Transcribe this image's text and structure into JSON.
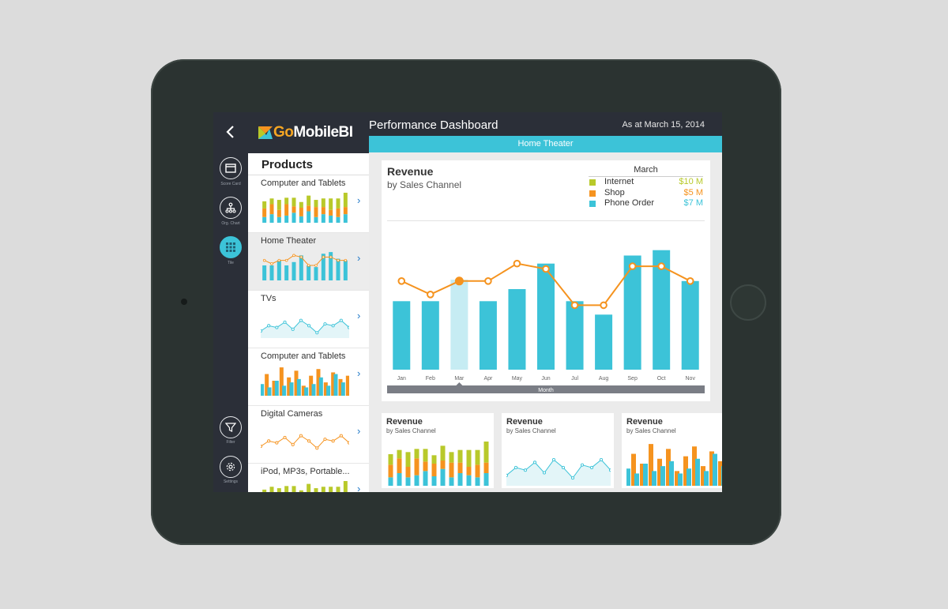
{
  "colors": {
    "teal": "#3cc3d8",
    "orange": "#f5931f",
    "green": "#b8c92a",
    "dark": "#2b2f38",
    "light_teal": "#c6ecf3"
  },
  "rail": {
    "back_icon": "chevron-left-icon",
    "items": [
      {
        "label": "Score Card",
        "icon": "scorecard-icon"
      },
      {
        "label": "Org. Chart",
        "icon": "org-chart-icon"
      },
      {
        "label": "Tile",
        "icon": "tile-icon"
      }
    ],
    "bottom": [
      {
        "label": "Filter",
        "icon": "filter-icon"
      },
      {
        "label": "Settings",
        "icon": "gear-icon"
      }
    ]
  },
  "logo": {
    "go": "Go",
    "rest": "MobileBI"
  },
  "products": {
    "title": "Products",
    "items": [
      {
        "label": "Computer and Tablets",
        "kind": "stacked"
      },
      {
        "label": "Home Theater",
        "kind": "bar-line"
      },
      {
        "label": "TVs",
        "kind": "area"
      },
      {
        "label": "Computer and Tablets",
        "kind": "grouped"
      },
      {
        "label": "Digital Cameras",
        "kind": "line"
      },
      {
        "label": "iPod, MP3s, Portable...",
        "kind": "stacked"
      }
    ]
  },
  "header": {
    "title": "Performance Dashboard",
    "date": "As at March 15, 2014",
    "category": "Home Theater"
  },
  "main_card": {
    "title": "Revenue",
    "subtitle": "by Sales Channel",
    "legend": {
      "month": "March",
      "rows": [
        {
          "name": "Internet",
          "value": "$10 M",
          "color": "#b8c92a"
        },
        {
          "name": "Shop",
          "value": "$5 M",
          "color": "#f5931f"
        },
        {
          "name": "Phone Order",
          "value": "$7 M",
          "color": "#3cc3d8"
        }
      ]
    }
  },
  "chart_data": {
    "type": "bar",
    "categories": [
      "Jan",
      "Feb",
      "Mar",
      "Apr",
      "May",
      "Jun",
      "Jul",
      "Aug",
      "Sep",
      "Oct",
      "Nov"
    ],
    "xlabel": "Month",
    "selected": "Mar",
    "series": [
      {
        "values": [
          51,
          51,
          67,
          51,
          60,
          79,
          51,
          41,
          85,
          89,
          66
        ]
      },
      {
        "values": [
          66,
          56,
          66,
          66,
          79,
          75,
          48,
          48,
          77,
          77,
          66
        ]
      }
    ],
    "ylim": [
      0,
      100
    ]
  },
  "small_cards": [
    {
      "title": "Revenue",
      "subtitle": "by Sales Channel",
      "kind": "stacked"
    },
    {
      "title": "Revenue",
      "subtitle": "by Sales Channel",
      "kind": "area"
    },
    {
      "title": "Revenue",
      "subtitle": "by Sales Channel",
      "kind": "grouped"
    }
  ]
}
